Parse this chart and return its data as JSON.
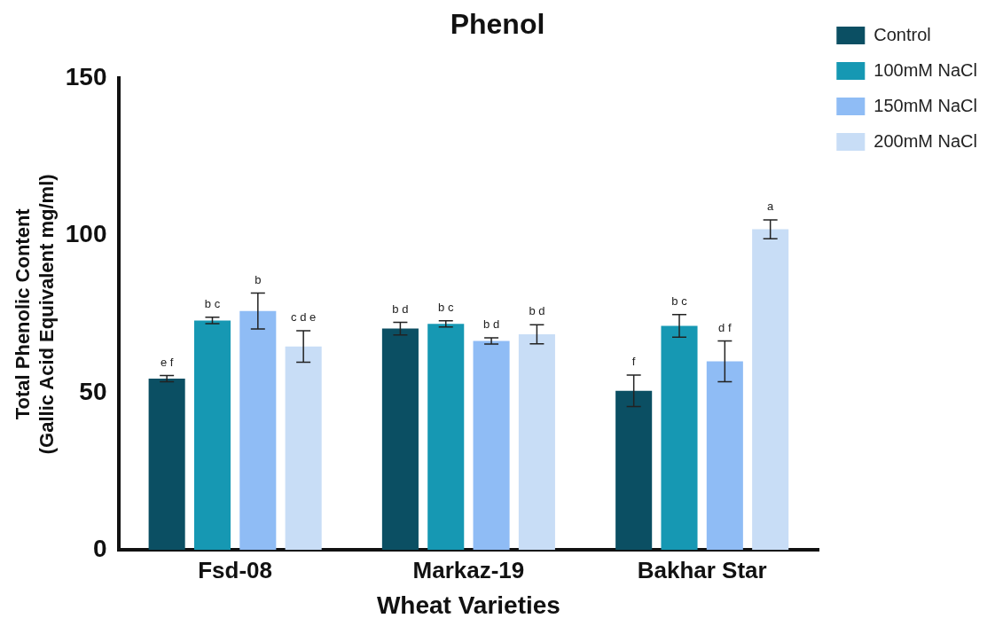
{
  "chart_data": {
    "type": "bar",
    "title": "Phenol",
    "xlabel": "Wheat Varieties",
    "ylabel": "Total Phenolic Content\n(Gallic Acid Equivalent mg/ml)",
    "categories": [
      "Fsd-08",
      "Markaz-19",
      "Bakhar Star"
    ],
    "series": [
      {
        "name": "Control",
        "color": "#0b4f63",
        "values": [
          54.5,
          70.4,
          50.6
        ],
        "errors": [
          1,
          2,
          5
        ],
        "value_labels": [
          "e f",
          "b d",
          "f"
        ]
      },
      {
        "name": "100mM NaCl",
        "color": "#1698b3",
        "values": [
          73,
          71.9,
          71.3
        ],
        "errors": [
          1,
          1,
          3.6
        ],
        "value_labels": [
          "b c",
          "b c",
          "b c"
        ]
      },
      {
        "name": "150mM NaCl",
        "color": "#8fbcf5",
        "values": [
          76,
          66.5,
          60
        ],
        "errors": [
          5.7,
          1,
          6.5
        ],
        "value_labels": [
          "b",
          "b d",
          "d f"
        ]
      },
      {
        "name": "200mM NaCl",
        "color": "#c8ddf6",
        "values": [
          64.7,
          68.6,
          102
        ],
        "errors": [
          5,
          3,
          3
        ],
        "value_labels": [
          "c d e",
          "b d",
          "a"
        ]
      }
    ],
    "ylim": [
      0,
      150
    ],
    "yticks": [
      0,
      50,
      100,
      150
    ],
    "grid": false,
    "legend": "right"
  }
}
